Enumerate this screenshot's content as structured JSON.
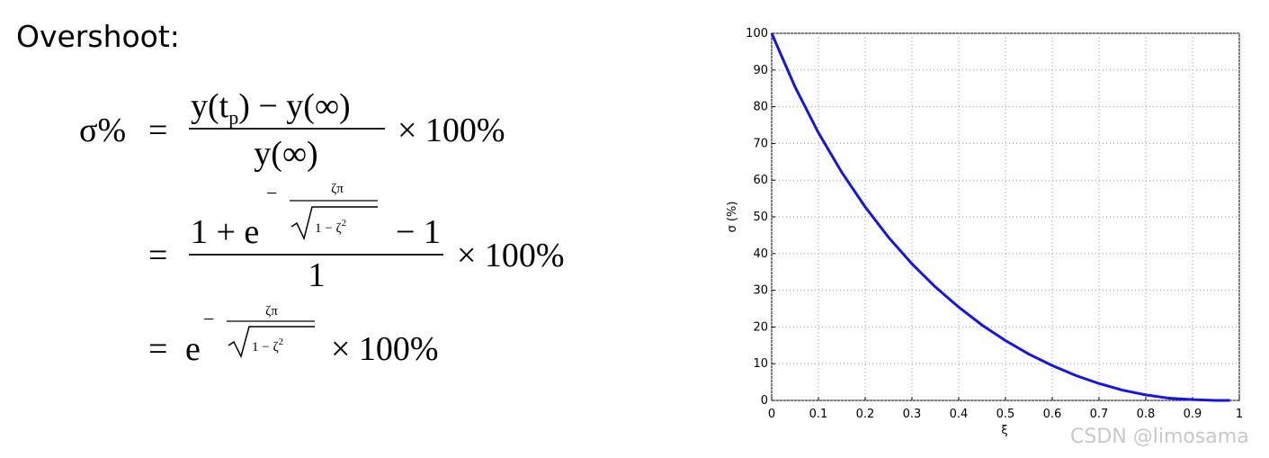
{
  "heading": "Overshoot:",
  "equation": {
    "lhs": "σ%",
    "rows": [
      {
        "eq": "=",
        "num": [
          "y(t",
          "p",
          ") − y(∞)"
        ],
        "den": "y(∞)",
        "tail": "× 100%"
      },
      {
        "eq": "=",
        "num_pre": "1 + e",
        "exponent": {
          "sign": "−",
          "num": "ζπ",
          "den": "1 − ζ",
          "sup": "2"
        },
        "num_post": "− 1",
        "den": "1",
        "tail": "× 100%"
      },
      {
        "eq": "=",
        "base": "e",
        "exponent": {
          "sign": "−",
          "num": "ζπ",
          "den": "1 − ζ",
          "sup": "2"
        },
        "tail": "× 100%"
      }
    ]
  },
  "watermark": "CSDN @limosama",
  "chart_data": {
    "type": "line",
    "xlabel": "ξ",
    "ylabel": "σ (%)",
    "x": [
      0,
      0.05,
      0.1,
      0.15,
      0.2,
      0.25,
      0.3,
      0.35,
      0.4,
      0.45,
      0.5,
      0.55,
      0.6,
      0.65,
      0.7,
      0.75,
      0.8,
      0.85,
      0.9,
      0.95,
      0.98
    ],
    "series": [
      {
        "name": "σ",
        "color": "#1414e6",
        "values": [
          100,
          85.4,
          72.9,
          62.1,
          52.7,
          44.4,
          37.2,
          30.9,
          25.4,
          20.5,
          16.3,
          12.6,
          9.5,
          6.8,
          4.6,
          2.8,
          1.5,
          0.6,
          0.2,
          0,
          0
        ]
      }
    ],
    "xlim": [
      0,
      1
    ],
    "ylim": [
      0,
      100
    ],
    "xticks": [
      0,
      0.1,
      0.2,
      0.3,
      0.4,
      0.5,
      0.6,
      0.7,
      0.8,
      0.9,
      1
    ],
    "yticks": [
      0,
      10,
      20,
      30,
      40,
      50,
      60,
      70,
      80,
      90,
      100
    ],
    "grid": true
  }
}
